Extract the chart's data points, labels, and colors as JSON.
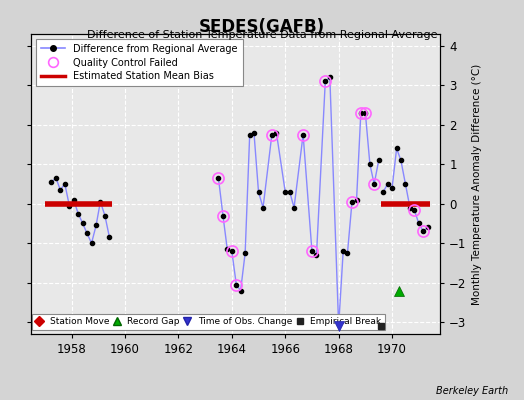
{
  "title": "SEDES(GAFB)",
  "subtitle": "Difference of Station Temperature Data from Regional Average",
  "ylabel": "Monthly Temperature Anomaly Difference (°C)",
  "xlabel_note": "Berkeley Earth",
  "ylim": [
    -3.3,
    4.3
  ],
  "xlim": [
    1956.5,
    1971.8
  ],
  "xticks": [
    1958,
    1960,
    1962,
    1964,
    1966,
    1968,
    1970
  ],
  "yticks": [
    -3,
    -2,
    -1,
    0,
    1,
    2,
    3,
    4
  ],
  "background_color": "#d4d4d4",
  "plot_bg_color": "#e8e8e8",
  "segment1_bias": 0.0,
  "segment2_bias": 0.0,
  "segment1_x_start": 1957.0,
  "segment1_x_end": 1959.5,
  "segment2_x_start": 1969.58,
  "segment2_x_end": 1971.42,
  "main_line_color": "#8888ff",
  "bias_line_color": "#cc0000",
  "qc_failed_color": "#ff66ff",
  "data_points": [
    [
      1957.25,
      0.55
    ],
    [
      1957.42,
      0.65
    ],
    [
      1957.58,
      0.35
    ],
    [
      1957.75,
      0.5
    ],
    [
      1957.92,
      -0.05
    ],
    [
      1958.08,
      0.1
    ],
    [
      1958.25,
      -0.25
    ],
    [
      1958.42,
      -0.5
    ],
    [
      1958.58,
      -0.75
    ],
    [
      1958.75,
      -1.0
    ],
    [
      1958.92,
      -0.55
    ],
    [
      1959.08,
      0.05
    ],
    [
      1959.25,
      -0.3
    ],
    [
      1959.42,
      -0.85
    ]
  ],
  "data_points2": [
    [
      1963.5,
      0.65
    ],
    [
      1963.67,
      -0.3
    ],
    [
      1963.83,
      -1.15
    ],
    [
      1964.0,
      -1.2
    ],
    [
      1964.17,
      -2.05
    ],
    [
      1964.33,
      -2.2
    ],
    [
      1964.5,
      -1.25
    ],
    [
      1964.67,
      1.75
    ],
    [
      1964.83,
      1.8
    ],
    [
      1965.0,
      0.3
    ],
    [
      1965.17,
      -0.1
    ],
    [
      1965.5,
      1.75
    ],
    [
      1965.67,
      1.8
    ],
    [
      1966.0,
      0.3
    ],
    [
      1966.17,
      0.3
    ],
    [
      1966.33,
      -0.1
    ],
    [
      1966.67,
      1.75
    ],
    [
      1967.0,
      -1.2
    ],
    [
      1967.17,
      -1.3
    ],
    [
      1967.5,
      3.1
    ],
    [
      1967.67,
      3.2
    ],
    [
      1968.0,
      -3.1
    ],
    [
      1968.17,
      -1.2
    ],
    [
      1968.33,
      -1.25
    ],
    [
      1968.5,
      0.05
    ],
    [
      1968.67,
      0.1
    ],
    [
      1968.83,
      2.3
    ],
    [
      1969.0,
      2.3
    ],
    [
      1969.17,
      1.0
    ],
    [
      1969.33,
      0.5
    ],
    [
      1969.5,
      1.1
    ]
  ],
  "data_points3": [
    [
      1969.67,
      0.3
    ],
    [
      1969.83,
      0.5
    ],
    [
      1970.0,
      0.4
    ],
    [
      1970.17,
      1.4
    ],
    [
      1970.33,
      1.1
    ],
    [
      1970.5,
      0.5
    ],
    [
      1970.67,
      -0.1
    ],
    [
      1970.83,
      -0.15
    ],
    [
      1971.0,
      -0.5
    ],
    [
      1971.17,
      -0.7
    ],
    [
      1971.33,
      -0.6
    ]
  ],
  "qc_failed_points": [
    [
      1963.5,
      0.65
    ],
    [
      1963.67,
      -0.3
    ],
    [
      1964.0,
      -1.2
    ],
    [
      1964.17,
      -2.05
    ],
    [
      1965.5,
      1.75
    ],
    [
      1966.67,
      1.75
    ],
    [
      1967.0,
      -1.2
    ],
    [
      1967.5,
      3.1
    ],
    [
      1968.5,
      0.05
    ],
    [
      1968.83,
      2.3
    ],
    [
      1969.0,
      2.3
    ],
    [
      1969.33,
      0.5
    ],
    [
      1970.83,
      -0.15
    ],
    [
      1971.17,
      -0.7
    ]
  ],
  "record_gap_x": 1970.25,
  "record_gap_y": -2.2,
  "obs_change_x": 1968.0,
  "obs_change_y": -3.1,
  "empirical_break_x": 1969.58,
  "empirical_break_y": -3.1
}
